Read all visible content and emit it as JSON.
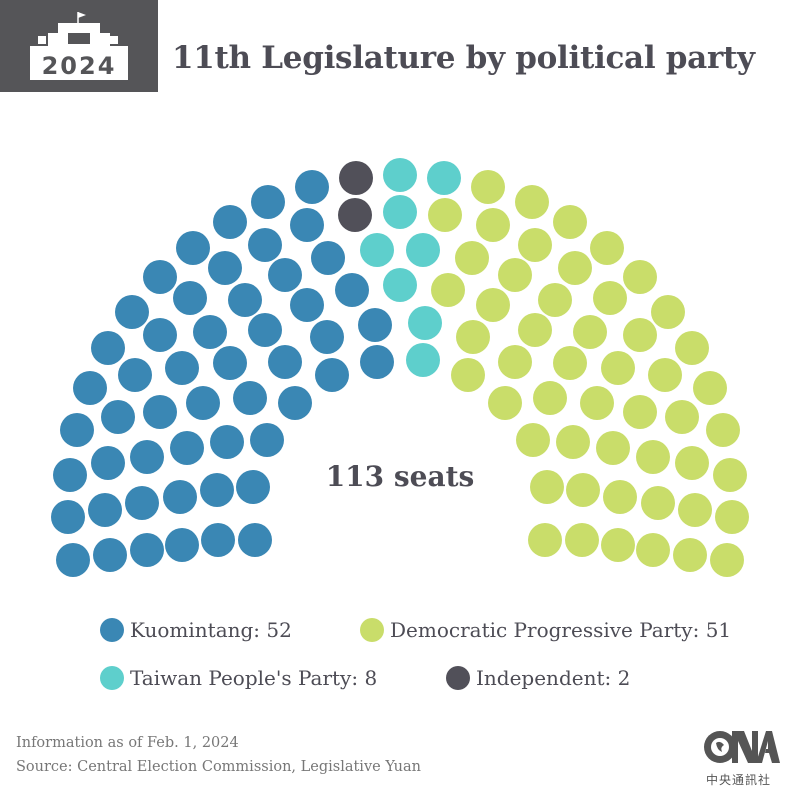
{
  "header": {
    "badge_year": "2024",
    "title": "11th Legislature by political party"
  },
  "center_label": "113 seats",
  "legend": [
    {
      "label": "Kuomintang: 52",
      "color": "#3a87b4"
    },
    {
      "label": "Democratic Progressive Party: 51",
      "color": "#c9dd6a"
    },
    {
      "label": "Taiwan People's Party: 8",
      "color": "#5ecfcc"
    },
    {
      "label": "Independent: 2",
      "color": "#515059"
    }
  ],
  "footer": {
    "info": "Information as of Feb. 1, 2024",
    "source": "Source: Central Election Commission, Legislative Yuan"
  },
  "logo": {
    "text": "CNA",
    "subtitle": "中央通訊社"
  },
  "colors": {
    "kmt": "#3a87b4",
    "dpp": "#c9dd6a",
    "tpp": "#5ecfcc",
    "ind": "#515059",
    "title": "#4d4c55"
  },
  "chart_data": {
    "type": "parliament",
    "title": "11th Legislature by political party",
    "total_seats": 113,
    "center_label": "113 seats",
    "categories": [
      "Kuomintang",
      "Democratic Progressive Party",
      "Taiwan People's Party",
      "Independent"
    ],
    "values": [
      52,
      51,
      8,
      2
    ],
    "colors": [
      "#3a87b4",
      "#c9dd6a",
      "#5ecfcc",
      "#515059"
    ],
    "legend_position": "bottom",
    "dot_radius": 17,
    "seats": {
      "kmt": [
        [
          312,
          187
        ],
        [
          268,
          202
        ],
        [
          307,
          225
        ],
        [
          230,
          222
        ],
        [
          265,
          245
        ],
        [
          328,
          258
        ],
        [
          193,
          248
        ],
        [
          225,
          268
        ],
        [
          285,
          275
        ],
        [
          352,
          290
        ],
        [
          160,
          277
        ],
        [
          190,
          298
        ],
        [
          245,
          300
        ],
        [
          307,
          305
        ],
        [
          132,
          312
        ],
        [
          160,
          335
        ],
        [
          210,
          332
        ],
        [
          265,
          330
        ],
        [
          327,
          337
        ],
        [
          375,
          325
        ],
        [
          108,
          348
        ],
        [
          135,
          375
        ],
        [
          182,
          368
        ],
        [
          230,
          363
        ],
        [
          285,
          362
        ],
        [
          332,
          375
        ],
        [
          377,
          362
        ],
        [
          90,
          388
        ],
        [
          118,
          417
        ],
        [
          160,
          412
        ],
        [
          203,
          403
        ],
        [
          250,
          398
        ],
        [
          295,
          403
        ],
        [
          77,
          430
        ],
        [
          70,
          475
        ],
        [
          108,
          463
        ],
        [
          147,
          457
        ],
        [
          187,
          448
        ],
        [
          227,
          442
        ],
        [
          267,
          440
        ],
        [
          68,
          517
        ],
        [
          105,
          510
        ],
        [
          142,
          503
        ],
        [
          180,
          497
        ],
        [
          217,
          490
        ],
        [
          253,
          487
        ],
        [
          73,
          560
        ],
        [
          110,
          555
        ],
        [
          147,
          550
        ],
        [
          182,
          545
        ],
        [
          218,
          540
        ],
        [
          255,
          540
        ]
      ],
      "dpp": [
        [
          488,
          187
        ],
        [
          532,
          202
        ],
        [
          493,
          225
        ],
        [
          570,
          222
        ],
        [
          535,
          245
        ],
        [
          472,
          258
        ],
        [
          607,
          248
        ],
        [
          575,
          268
        ],
        [
          515,
          275
        ],
        [
          448,
          290
        ],
        [
          640,
          277
        ],
        [
          610,
          298
        ],
        [
          555,
          300
        ],
        [
          493,
          305
        ],
        [
          668,
          312
        ],
        [
          640,
          335
        ],
        [
          590,
          332
        ],
        [
          535,
          330
        ],
        [
          473,
          337
        ],
        [
          692,
          348
        ],
        [
          665,
          375
        ],
        [
          618,
          368
        ],
        [
          570,
          363
        ],
        [
          515,
          362
        ],
        [
          468,
          375
        ],
        [
          710,
          388
        ],
        [
          682,
          417
        ],
        [
          640,
          412
        ],
        [
          597,
          403
        ],
        [
          550,
          398
        ],
        [
          505,
          403
        ],
        [
          723,
          430
        ],
        [
          730,
          475
        ],
        [
          692,
          463
        ],
        [
          653,
          457
        ],
        [
          613,
          448
        ],
        [
          573,
          442
        ],
        [
          533,
          440
        ],
        [
          732,
          517
        ],
        [
          695,
          510
        ],
        [
          658,
          503
        ],
        [
          620,
          497
        ],
        [
          583,
          490
        ],
        [
          547,
          487
        ],
        [
          727,
          560
        ],
        [
          690,
          555
        ],
        [
          653,
          550
        ],
        [
          618,
          545
        ],
        [
          582,
          540
        ],
        [
          545,
          540
        ],
        [
          445,
          215
        ]
      ],
      "tpp": [
        [
          400,
          175
        ],
        [
          444,
          178
        ],
        [
          400,
          212
        ],
        [
          377,
          250
        ],
        [
          423,
          250
        ],
        [
          400,
          285
        ],
        [
          425,
          323
        ],
        [
          423,
          360
        ]
      ],
      "ind": [
        [
          356,
          178
        ],
        [
          355,
          215
        ]
      ]
    }
  }
}
